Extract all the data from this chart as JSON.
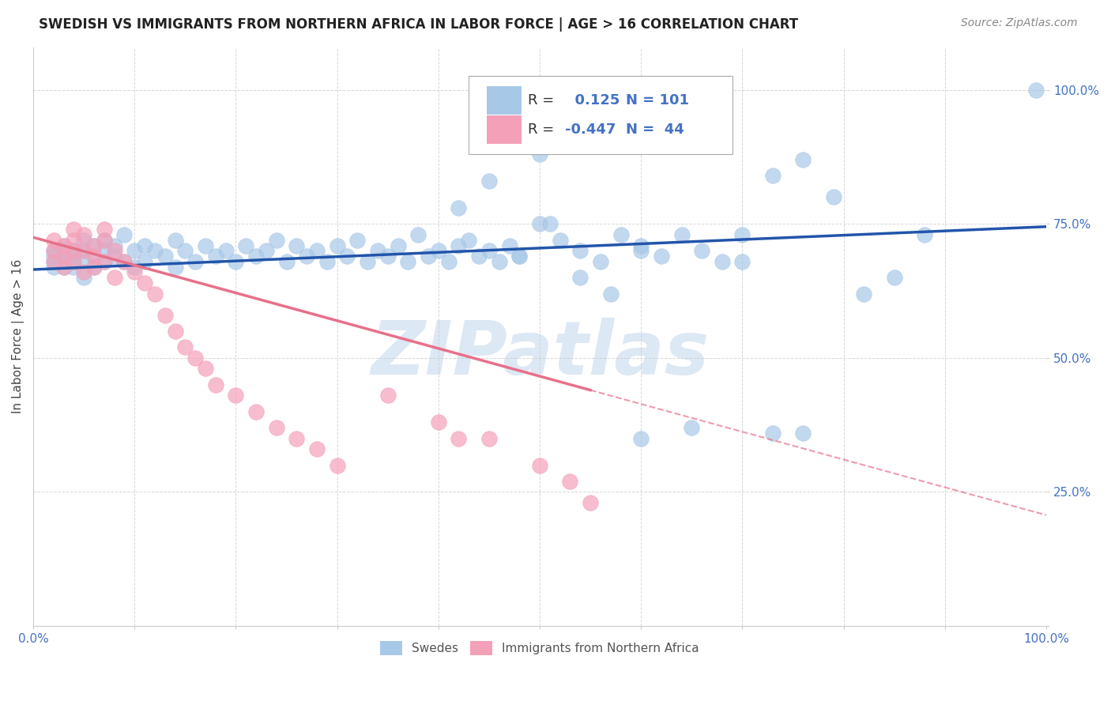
{
  "title": "SWEDISH VS IMMIGRANTS FROM NORTHERN AFRICA IN LABOR FORCE | AGE > 16 CORRELATION CHART",
  "source": "Source: ZipAtlas.com",
  "ylabel": "In Labor Force | Age > 16",
  "xlim": [
    0.0,
    1.0
  ],
  "ylim": [
    0.0,
    1.08
  ],
  "xticks": [
    0.0,
    0.1,
    0.2,
    0.3,
    0.4,
    0.5,
    0.6,
    0.7,
    0.8,
    0.9,
    1.0
  ],
  "yticks": [
    0.0,
    0.25,
    0.5,
    0.75,
    1.0
  ],
  "xticklabels": [
    "0.0%",
    "",
    "",
    "",
    "",
    "",
    "",
    "",
    "",
    "",
    "100.0%"
  ],
  "yticklabels": [
    "",
    "25.0%",
    "50.0%",
    "75.0%",
    "100.0%"
  ],
  "blue_R": 0.125,
  "blue_N": 101,
  "pink_R": -0.447,
  "pink_N": 44,
  "blue_color": "#a8c8e8",
  "pink_color": "#f4a0b8",
  "blue_line_color": "#2255aa",
  "pink_line_color": "#e8708a",
  "grid_color": "#cccccc",
  "background_color": "#ffffff",
  "watermark_color": "#dce8f4",
  "title_fontsize": 12,
  "source_fontsize": 10,
  "legend_fontsize": 13,
  "axis_label_fontsize": 11,
  "blue_x": [
    0.02,
    0.02,
    0.02,
    0.02,
    0.03,
    0.03,
    0.03,
    0.03,
    0.03,
    0.04,
    0.04,
    0.04,
    0.04,
    0.05,
    0.05,
    0.05,
    0.05,
    0.06,
    0.06,
    0.06,
    0.07,
    0.07,
    0.07,
    0.08,
    0.08,
    0.09,
    0.09,
    0.1,
    0.1,
    0.11,
    0.11,
    0.12,
    0.13,
    0.14,
    0.14,
    0.15,
    0.16,
    0.17,
    0.18,
    0.19,
    0.2,
    0.21,
    0.22,
    0.23,
    0.24,
    0.25,
    0.26,
    0.27,
    0.28,
    0.29,
    0.3,
    0.31,
    0.32,
    0.33,
    0.34,
    0.35,
    0.36,
    0.37,
    0.38,
    0.39,
    0.4,
    0.41,
    0.42,
    0.43,
    0.44,
    0.45,
    0.46,
    0.47,
    0.48,
    0.5,
    0.52,
    0.54,
    0.56,
    0.58,
    0.6,
    0.62,
    0.64,
    0.66,
    0.68,
    0.7,
    0.73,
    0.76,
    0.79,
    0.82,
    0.85,
    0.88,
    0.73,
    0.76,
    0.5,
    0.55,
    0.6,
    0.65,
    0.7,
    0.42,
    0.45,
    0.48,
    0.51,
    0.54,
    0.57,
    0.6,
    0.99
  ],
  "blue_y": [
    0.68,
    0.69,
    0.7,
    0.67,
    0.68,
    0.69,
    0.7,
    0.67,
    0.71,
    0.68,
    0.69,
    0.7,
    0.67,
    0.68,
    0.72,
    0.65,
    0.7,
    0.69,
    0.71,
    0.67,
    0.7,
    0.68,
    0.72,
    0.69,
    0.71,
    0.68,
    0.73,
    0.7,
    0.67,
    0.71,
    0.68,
    0.7,
    0.69,
    0.72,
    0.67,
    0.7,
    0.68,
    0.71,
    0.69,
    0.7,
    0.68,
    0.71,
    0.69,
    0.7,
    0.72,
    0.68,
    0.71,
    0.69,
    0.7,
    0.68,
    0.71,
    0.69,
    0.72,
    0.68,
    0.7,
    0.69,
    0.71,
    0.68,
    0.73,
    0.69,
    0.7,
    0.68,
    0.71,
    0.72,
    0.69,
    0.7,
    0.68,
    0.71,
    0.69,
    0.75,
    0.72,
    0.7,
    0.68,
    0.73,
    0.71,
    0.69,
    0.73,
    0.7,
    0.68,
    0.73,
    0.84,
    0.87,
    0.8,
    0.62,
    0.65,
    0.73,
    0.36,
    0.36,
    0.88,
    0.91,
    0.35,
    0.37,
    0.68,
    0.78,
    0.83,
    0.69,
    0.75,
    0.65,
    0.62,
    0.7,
    1.0
  ],
  "pink_x": [
    0.02,
    0.02,
    0.02,
    0.03,
    0.03,
    0.03,
    0.04,
    0.04,
    0.04,
    0.04,
    0.05,
    0.05,
    0.05,
    0.06,
    0.06,
    0.06,
    0.07,
    0.07,
    0.07,
    0.08,
    0.08,
    0.09,
    0.1,
    0.11,
    0.12,
    0.13,
    0.14,
    0.15,
    0.16,
    0.17,
    0.18,
    0.2,
    0.22,
    0.24,
    0.26,
    0.28,
    0.3,
    0.35,
    0.4,
    0.45,
    0.5,
    0.53,
    0.55,
    0.42
  ],
  "pink_y": [
    0.7,
    0.68,
    0.72,
    0.69,
    0.71,
    0.67,
    0.7,
    0.72,
    0.68,
    0.74,
    0.7,
    0.66,
    0.73,
    0.69,
    0.71,
    0.67,
    0.72,
    0.68,
    0.74,
    0.7,
    0.65,
    0.68,
    0.66,
    0.64,
    0.62,
    0.58,
    0.55,
    0.52,
    0.5,
    0.48,
    0.45,
    0.43,
    0.4,
    0.37,
    0.35,
    0.33,
    0.3,
    0.43,
    0.38,
    0.35,
    0.3,
    0.27,
    0.23,
    0.35
  ]
}
